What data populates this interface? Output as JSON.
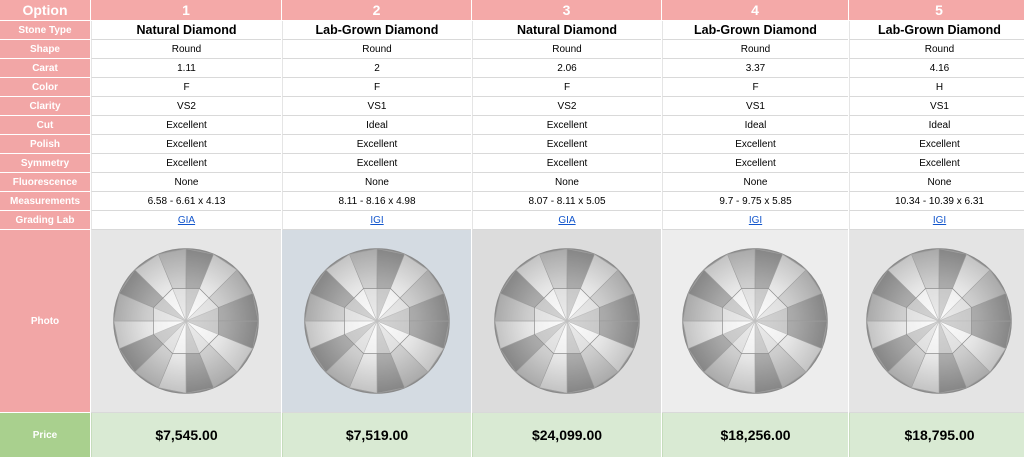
{
  "row_labels": {
    "option": "Option",
    "stone_type": "Stone Type",
    "shape": "Shape",
    "carat": "Carat",
    "color": "Color",
    "clarity": "Clarity",
    "cut": "Cut",
    "polish": "Polish",
    "symmetry": "Symmetry",
    "fluorescence": "Fluorescence",
    "measurements": "Measurements",
    "grading_lab": "Grading Lab",
    "photo": "Photo",
    "price": "Price"
  },
  "options": [
    {
      "number": "1",
      "stone_type": "Natural Diamond",
      "shape": "Round",
      "carat": "1.11",
      "color": "F",
      "clarity": "VS2",
      "cut": "Excellent",
      "polish": "Excellent",
      "symmetry": "Excellent",
      "fluorescence": "None",
      "measurements": "6.58 - 6.61 x 4.13",
      "grading_lab": "GIA",
      "price": "$7,545.00",
      "photo_bg": "#e6e6e6"
    },
    {
      "number": "2",
      "stone_type": "Lab-Grown Diamond",
      "shape": "Round",
      "carat": "2",
      "color": "F",
      "clarity": "VS1",
      "cut": "Ideal",
      "polish": "Excellent",
      "symmetry": "Excellent",
      "fluorescence": "None",
      "measurements": "8.11 - 8.16 x 4.98",
      "grading_lab": "IGI",
      "price": "$7,519.00",
      "photo_bg": "#d4dbe2"
    },
    {
      "number": "3",
      "stone_type": "Natural Diamond",
      "shape": "Round",
      "carat": "2.06",
      "color": "F",
      "clarity": "VS2",
      "cut": "Excellent",
      "polish": "Excellent",
      "symmetry": "Excellent",
      "fluorescence": "None",
      "measurements": "8.07 - 8.11 x 5.05",
      "grading_lab": "GIA",
      "price": "$24,099.00",
      "photo_bg": "#dcdcdc"
    },
    {
      "number": "4",
      "stone_type": "Lab-Grown Diamond",
      "shape": "Round",
      "carat": "3.37",
      "color": "F",
      "clarity": "VS1",
      "cut": "Ideal",
      "polish": "Excellent",
      "symmetry": "Excellent",
      "fluorescence": "None",
      "measurements": "9.7 - 9.75 x 5.85",
      "grading_lab": "IGI",
      "price": "$18,256.00",
      "photo_bg": "#ededed"
    },
    {
      "number": "5",
      "stone_type": "Lab-Grown Diamond",
      "shape": "Round",
      "carat": "4.16",
      "color": "H",
      "clarity": "VS1",
      "cut": "Ideal",
      "polish": "Excellent",
      "symmetry": "Excellent",
      "fluorescence": "None",
      "measurements": "10.34 - 10.39 x 6.31",
      "grading_lab": "IGI",
      "price": "$18,795.00",
      "photo_bg": "#e4e4e4"
    }
  ],
  "colors": {
    "header_pink": "#f4a9a8",
    "label_pink": "#f2a6a6",
    "price_label_green": "#a9d08e",
    "price_row_green": "#d9ead3",
    "link_blue": "#1155cc"
  },
  "icons": {
    "photo": "round-brilliant-diamond-icon"
  }
}
